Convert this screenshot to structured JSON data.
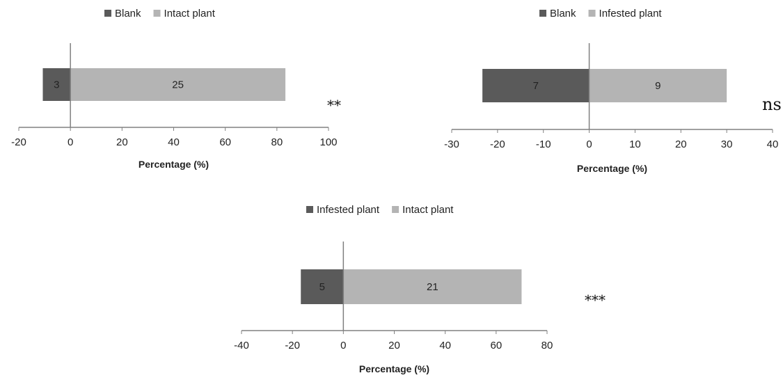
{
  "colors": {
    "neg": "#5a5a5a",
    "pos": "#b4b4b4",
    "axis": "#808080"
  },
  "chart_data": [
    {
      "type": "bar",
      "orientation": "horizontal",
      "stacked": "diverging",
      "legend_position": "top",
      "xlabel": "Percentage (%)",
      "xlim": [
        -20,
        100
      ],
      "xticks": [
        -20,
        0,
        20,
        40,
        60,
        80,
        100
      ],
      "significance": "**",
      "series": [
        {
          "name": "Blank",
          "value": -10.7,
          "label": "3",
          "color": "#5a5a5a"
        },
        {
          "name": "Intact plant",
          "value": 83.3,
          "label": "25",
          "color": "#b4b4b4"
        }
      ]
    },
    {
      "type": "bar",
      "orientation": "horizontal",
      "stacked": "diverging",
      "legend_position": "top",
      "xlabel": "Percentage (%)",
      "xlim": [
        -30,
        40
      ],
      "xticks": [
        -30,
        -20,
        -10,
        0,
        10,
        20,
        30,
        40
      ],
      "significance": "ns",
      "series": [
        {
          "name": "Blank",
          "value": -23.3,
          "label": "7",
          "color": "#5a5a5a"
        },
        {
          "name": "Infested plant",
          "value": 30.0,
          "label": "9",
          "color": "#b4b4b4"
        }
      ]
    },
    {
      "type": "bar",
      "orientation": "horizontal",
      "stacked": "diverging",
      "legend_position": "top",
      "xlabel": "Percentage (%)",
      "xlim": [
        -40,
        80
      ],
      "xticks": [
        -40,
        -20,
        0,
        20,
        40,
        60,
        80
      ],
      "significance": "***",
      "series": [
        {
          "name": "Infested plant",
          "value": -16.7,
          "label": "5",
          "color": "#5a5a5a"
        },
        {
          "name": "Intact plant",
          "value": 70.0,
          "label": "21",
          "color": "#b4b4b4"
        }
      ]
    }
  ]
}
